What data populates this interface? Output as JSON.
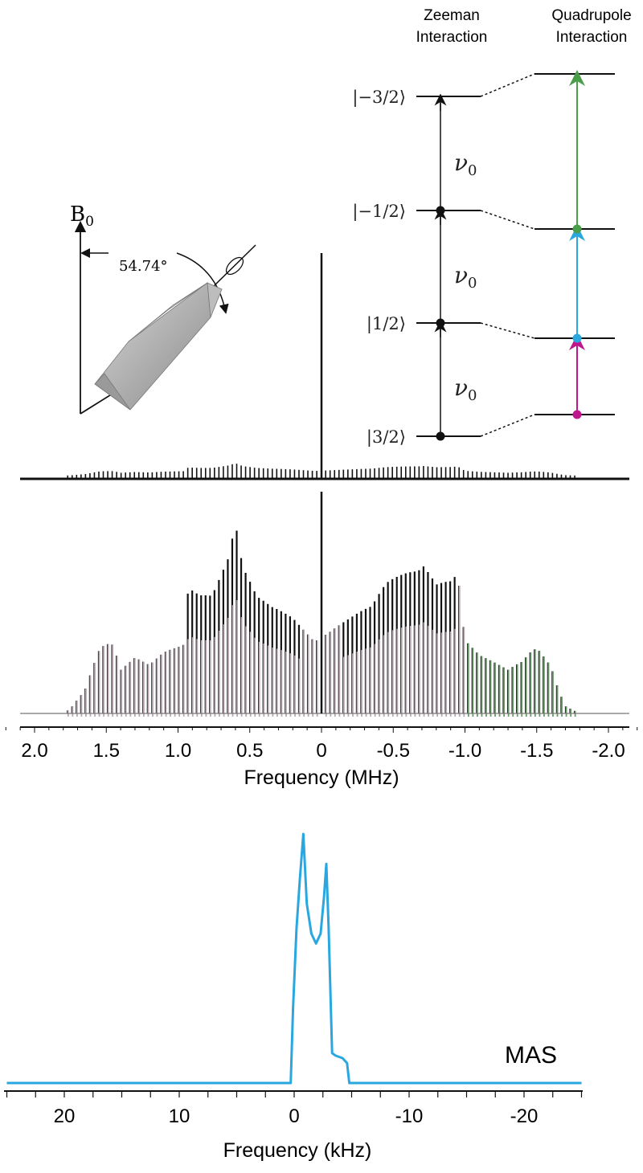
{
  "energy_diagram": {
    "headers": {
      "zeeman": [
        "Zeeman",
        "Interaction"
      ],
      "quadrupole": [
        "Quadrupole",
        "Interaction"
      ]
    },
    "levels": [
      "|−3/2⟩",
      "|−1/2⟩",
      "|1/2⟩",
      "|3/2⟩"
    ],
    "transition_label": "ν",
    "transition_subscript": "0",
    "colors": {
      "zeeman_arrow": "#111111",
      "satellite_low": "#c0168c",
      "central": "#2aa7df",
      "satellite_high": "#4a9e4a"
    }
  },
  "rotor": {
    "field_label": "B",
    "field_subscript": "0",
    "angle_label": "54.74°"
  },
  "chart_data": [
    {
      "type": "bar",
      "description_role": "static spinning-sideband spectrum",
      "xlabel": "Frequency (MHz)",
      "xlim": [
        2.3,
        -2.3
      ],
      "xticks": [
        "2.0",
        "1.5",
        "1.0",
        "0.5",
        "0",
        "-0.5",
        "-1.0",
        "-1.5",
        "-2.0"
      ],
      "xtick_values": [
        2.0,
        1.5,
        1.0,
        0.5,
        0,
        -0.5,
        -1.0,
        -1.5,
        -2.0
      ],
      "central_line": {
        "x": 0,
        "intensity": 1.0
      },
      "sideband_spacing": 0.031,
      "envelope": [
        [
          1.8,
          0
        ],
        [
          1.75,
          0.02
        ],
        [
          1.65,
          0.1
        ],
        [
          1.6,
          0.2
        ],
        [
          1.55,
          0.3
        ],
        [
          1.5,
          0.35
        ],
        [
          1.45,
          0.33
        ],
        [
          1.4,
          0.2
        ],
        [
          1.3,
          0.24
        ],
        [
          1.2,
          0.2
        ],
        [
          1.1,
          0.25
        ],
        [
          1.0,
          0.28
        ],
        [
          0.95,
          0.3
        ],
        [
          0.93,
          0.55
        ],
        [
          0.85,
          0.55
        ],
        [
          0.75,
          0.6
        ],
        [
          0.65,
          0.7
        ],
        [
          0.6,
          0.83
        ],
        [
          0.55,
          0.62
        ],
        [
          0.45,
          0.48
        ],
        [
          0.35,
          0.44
        ],
        [
          0.2,
          0.42
        ],
        [
          0.1,
          0.38
        ],
        [
          0.05,
          0.36
        ],
        [
          -0.05,
          0.37
        ],
        [
          -0.2,
          0.4
        ],
        [
          -0.35,
          0.44
        ],
        [
          -0.45,
          0.55
        ],
        [
          -0.55,
          0.62
        ],
        [
          -0.7,
          0.73
        ],
        [
          -0.8,
          0.58
        ],
        [
          -0.9,
          0.56
        ],
        [
          -0.95,
          0.58
        ],
        [
          -1.0,
          0.3
        ],
        [
          -1.1,
          0.24
        ],
        [
          -1.3,
          0.2
        ],
        [
          -1.45,
          0.29
        ],
        [
          -1.5,
          0.3
        ],
        [
          -1.55,
          0.25
        ],
        [
          -1.6,
          0.2
        ],
        [
          -1.65,
          0.1
        ],
        [
          -1.7,
          0.03
        ],
        [
          -1.8,
          0
        ]
      ],
      "colors": {
        "outer": "#111111",
        "inner": "#b9a9b4",
        "green": "#6a9a6a"
      }
    },
    {
      "type": "line",
      "xlabel": "Frequency (kHz)",
      "label": "MAS",
      "xlim": [
        25,
        -25
      ],
      "xticks": [
        "20",
        "10",
        "0",
        "-10",
        "-20"
      ],
      "xtick_values": [
        20,
        10,
        0,
        -10,
        -20
      ],
      "color": "#2aa7df",
      "x": [
        25,
        0.3,
        0.1,
        -0.2,
        -0.5,
        -0.8,
        -1.1,
        -1.5,
        -1.9,
        -2.3,
        -2.6,
        -2.8,
        -3.0,
        -3.3,
        -3.6,
        -4.2,
        -4.6,
        -4.8,
        -5.0,
        -25
      ],
      "y": [
        0,
        0,
        0.3,
        0.62,
        0.82,
        1.0,
        0.72,
        0.6,
        0.56,
        0.6,
        0.75,
        0.88,
        0.62,
        0.12,
        0.11,
        0.1,
        0.08,
        0.0,
        0,
        0
      ]
    }
  ]
}
